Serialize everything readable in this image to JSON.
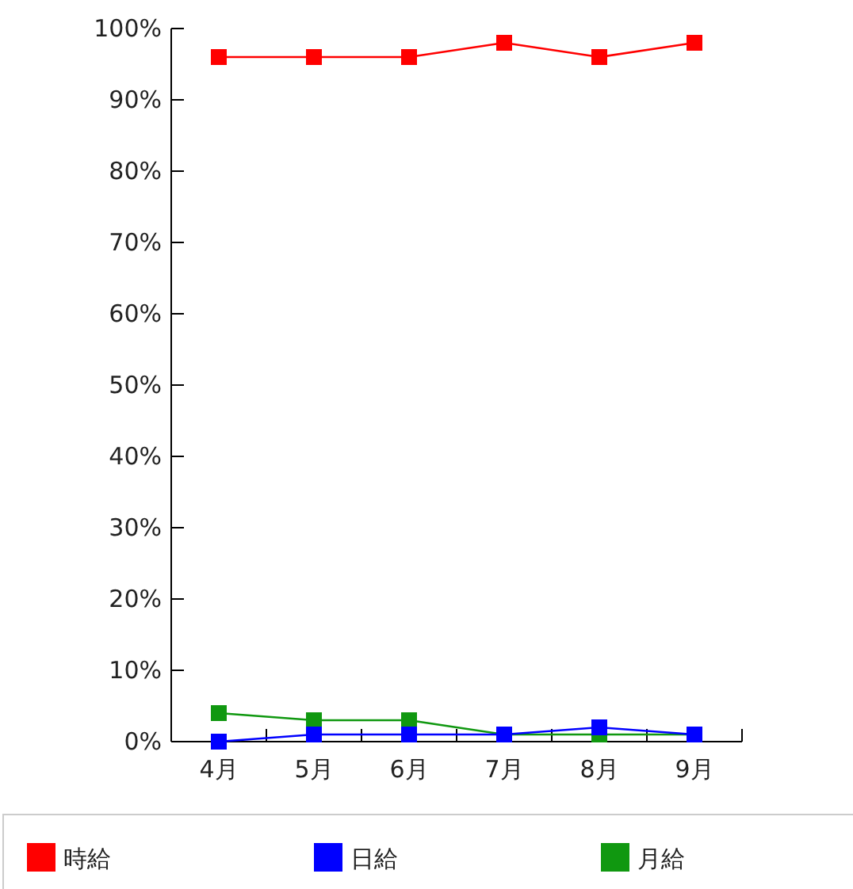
{
  "chart_data": {
    "type": "line",
    "categories": [
      "4月",
      "5月",
      "6月",
      "7月",
      "8月",
      "9月"
    ],
    "series": [
      {
        "name": "時給",
        "color": "#ff0000",
        "values": [
          96,
          96,
          96,
          98,
          96,
          98
        ]
      },
      {
        "name": "日給",
        "color": "#0000ff",
        "values": [
          0,
          1,
          1,
          1,
          2,
          1
        ]
      },
      {
        "name": "月給",
        "color": "#109810",
        "values": [
          4,
          3,
          3,
          1,
          1,
          1
        ]
      }
    ],
    "ylim": [
      0,
      100
    ],
    "yticks": [
      {
        "value": 0,
        "label": "0%"
      },
      {
        "value": 10,
        "label": "10%"
      },
      {
        "value": 20,
        "label": "20%"
      },
      {
        "value": 30,
        "label": "30%"
      },
      {
        "value": 40,
        "label": "40%"
      },
      {
        "value": 50,
        "label": "50%"
      },
      {
        "value": 60,
        "label": "60%"
      },
      {
        "value": 70,
        "label": "70%"
      },
      {
        "value": 80,
        "label": "80%"
      },
      {
        "value": 90,
        "label": "90%"
      },
      {
        "value": 100,
        "label": "100%"
      }
    ],
    "grid": false,
    "legend": "bottom",
    "marker": "square",
    "line_style": "solid"
  }
}
